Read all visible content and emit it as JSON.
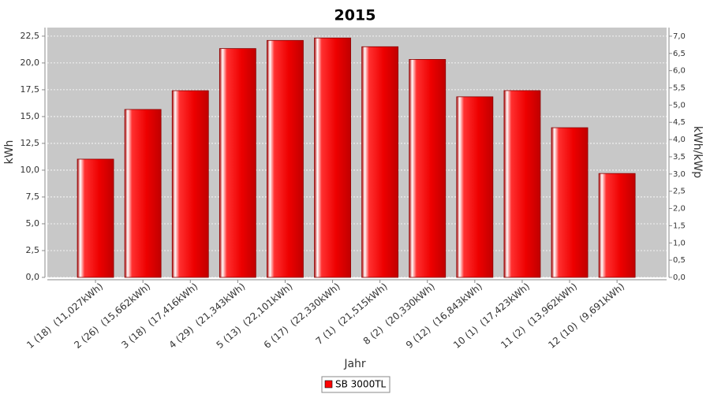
{
  "chart_data": {
    "type": "bar",
    "title": "2015",
    "x_label": "Jahr",
    "y_label": "kWh",
    "y2_label": "kWh/kWp",
    "categories": [
      "1 (18)  (11,027kWh)",
      "2 (26)  (15,662kWh)",
      "3 (18)  (17,416kWh)",
      "4 (29)  (21,343kWh)",
      "5 (13)  (22,101kWh)",
      "6 (17)  (22,330kWh)",
      "7 (1)  (21,515kWh)",
      "8 (2)  (20,330kWh)",
      "9 (12)  (16,843kWh)",
      "10 (1)  (17,423kWh)",
      "11 (2)  (13,962kWh)",
      "12 (10)  (9,691kWh)"
    ],
    "series": [
      {
        "name": "SB 3000TL",
        "color": "#ff0000",
        "values": [
          11.027,
          15.662,
          17.416,
          21.343,
          22.101,
          22.33,
          21.515,
          20.33,
          16.843,
          17.423,
          13.962,
          9.691
        ]
      }
    ],
    "ylim": [
      0,
      23.3
    ],
    "yticks": [
      {
        "value": 0,
        "label": "0,0"
      },
      {
        "value": 2.5,
        "label": "2,5"
      },
      {
        "value": 5,
        "label": "5,0"
      },
      {
        "value": 7.5,
        "label": "7,5"
      },
      {
        "value": 10,
        "label": "10,0"
      },
      {
        "value": 12.5,
        "label": "12,5"
      },
      {
        "value": 15,
        "label": "15,0"
      },
      {
        "value": 17.5,
        "label": "17,5"
      },
      {
        "value": 20,
        "label": "20,0"
      },
      {
        "value": 22.5,
        "label": "22,5"
      }
    ],
    "y2lim": [
      0,
      7.25
    ],
    "y2ticks": [
      {
        "value": 0,
        "label": "0,0"
      },
      {
        "value": 0.5,
        "label": "0,5"
      },
      {
        "value": 1,
        "label": "1,0"
      },
      {
        "value": 1.5,
        "label": "1,5"
      },
      {
        "value": 2,
        "label": "2,0"
      },
      {
        "value": 2.5,
        "label": "2,5"
      },
      {
        "value": 3,
        "label": "3,0"
      },
      {
        "value": 3.5,
        "label": "3,5"
      },
      {
        "value": 4,
        "label": "4,0"
      },
      {
        "value": 4.5,
        "label": "4,5"
      },
      {
        "value": 5,
        "label": "5,0"
      },
      {
        "value": 5.5,
        "label": "5,5"
      },
      {
        "value": 6,
        "label": "6,0"
      },
      {
        "value": 6.5,
        "label": "6,5"
      },
      {
        "value": 7,
        "label": "7,0"
      }
    ],
    "grid": true,
    "legend": "bottom"
  }
}
